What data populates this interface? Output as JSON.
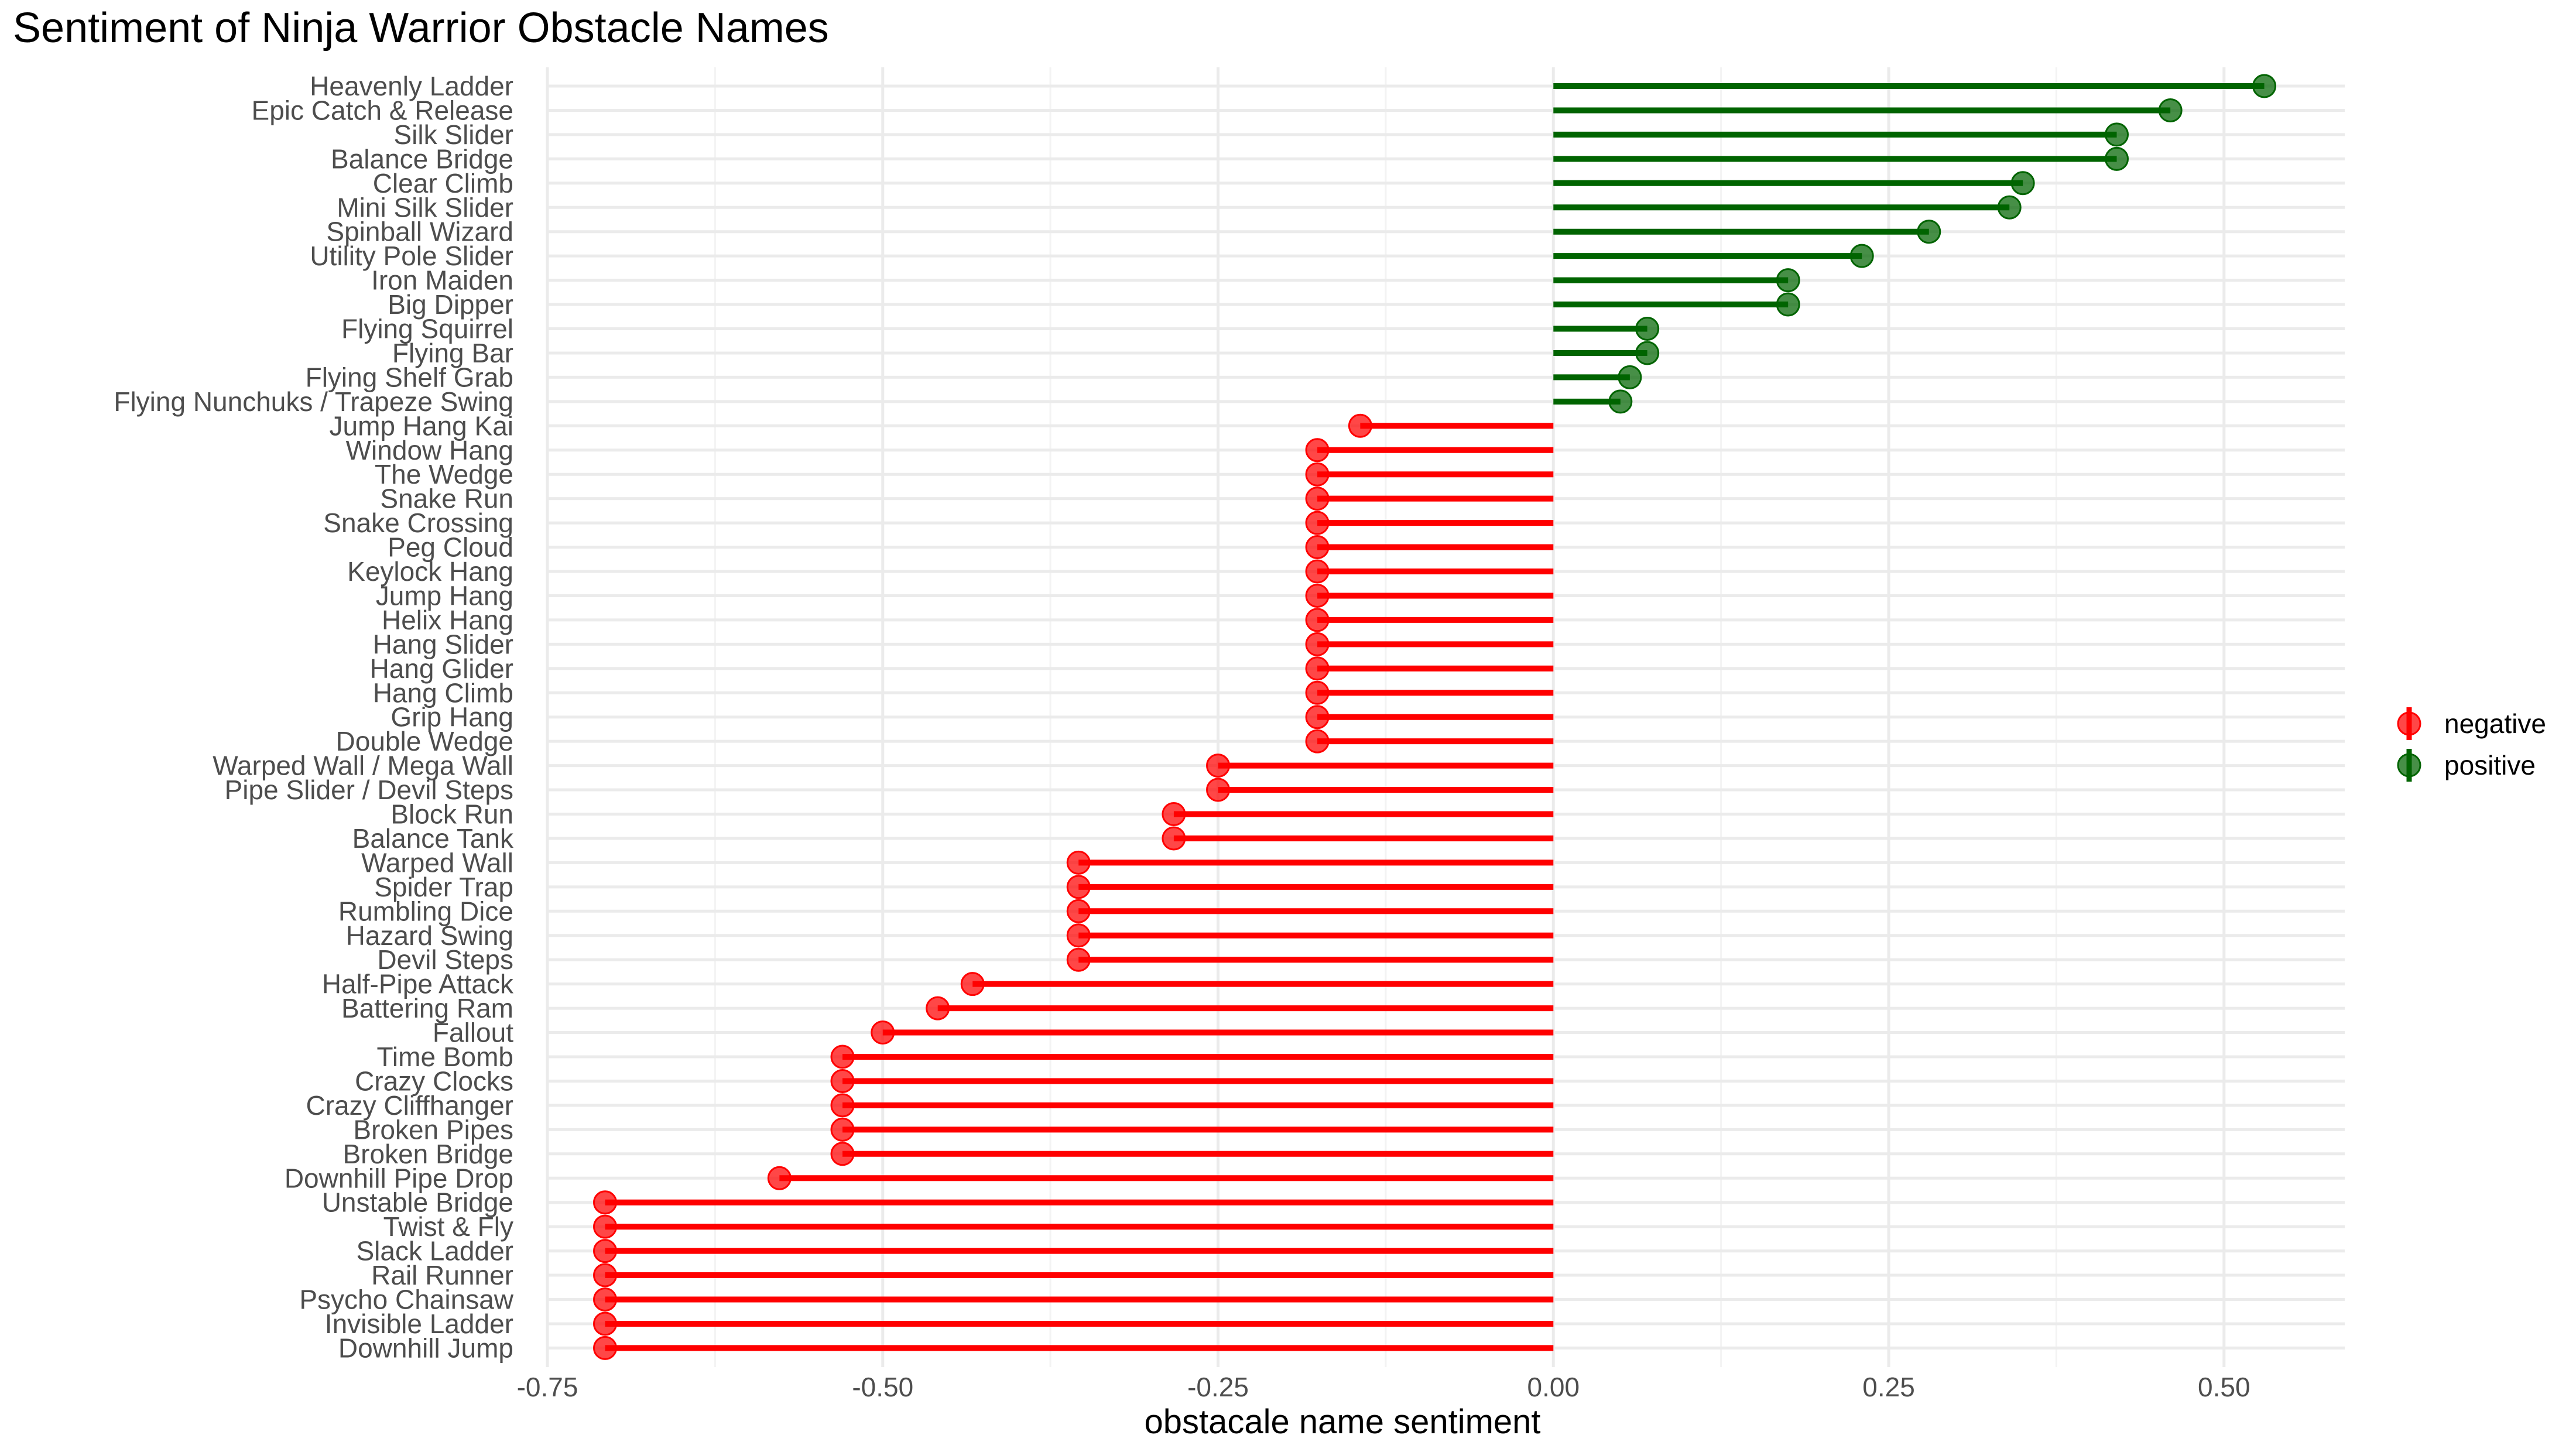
{
  "chart_data": {
    "type": "lollipop",
    "title": "Sentiment of Ninja Warrior Obstacle Names",
    "xlabel": "obstacale name sentiment",
    "ylabel": "",
    "xlim": [
      -0.75,
      0.59
    ],
    "xticks": [
      -0.75,
      -0.5,
      -0.25,
      0.0,
      0.25,
      0.5
    ],
    "xtick_labels": [
      "-0.75",
      "-0.50",
      "-0.25",
      "0.00",
      "0.25",
      "0.50"
    ],
    "grid": true,
    "legend_position": "right",
    "colors": {
      "negative": "#ff0000",
      "positive": "#006400",
      "grid_major": "#ebebeb",
      "grid_minor": "#f3f3f3",
      "label_text": "#4d4d4d",
      "title_text": "#000000"
    },
    "legend": [
      {
        "key": "negative",
        "label": "negative"
      },
      {
        "key": "positive",
        "label": "positive"
      }
    ],
    "categories": [
      "Heavenly Ladder",
      "Epic Catch & Release",
      "Silk Slider",
      "Balance Bridge",
      "Clear Climb",
      "Mini Silk Slider",
      "Spinball Wizard",
      "Utility Pole Slider",
      "Iron Maiden",
      "Big Dipper",
      "Flying Squirrel",
      "Flying Bar",
      "Flying Shelf Grab",
      "Flying Nunchuks / Trapeze Swing",
      "Jump Hang Kai",
      "Window Hang",
      "The Wedge",
      "Snake Run",
      "Snake Crossing",
      "Peg Cloud",
      "Keylock Hang",
      "Jump Hang",
      "Helix Hang",
      "Hang Slider",
      "Hang Glider",
      "Hang Climb",
      "Grip Hang",
      "Double Wedge",
      "Warped Wall / Mega Wall",
      "Pipe Slider / Devil Steps",
      "Block Run",
      "Balance Tank",
      "Warped Wall",
      "Spider Trap",
      "Rumbling Dice",
      "Hazard Swing",
      "Devil Steps",
      "Half-Pipe Attack",
      "Battering Ram",
      "Fallout",
      "Time Bomb",
      "Crazy Clocks",
      "Crazy Cliffhanger",
      "Broken Pipes",
      "Broken Bridge",
      "Downhill Pipe Drop",
      "Unstable Bridge",
      "Twist & Fly",
      "Slack Ladder",
      "Rail Runner",
      "Psycho Chainsaw",
      "Invisible Ladder",
      "Downhill Jump"
    ],
    "values": [
      0.53,
      0.46,
      0.42,
      0.42,
      0.35,
      0.34,
      0.28,
      0.23,
      0.175,
      0.175,
      0.07,
      0.07,
      0.057,
      0.05,
      -0.144,
      -0.176,
      -0.176,
      -0.176,
      -0.176,
      -0.176,
      -0.176,
      -0.176,
      -0.176,
      -0.176,
      -0.176,
      -0.176,
      -0.176,
      -0.176,
      -0.25,
      -0.25,
      -0.283,
      -0.283,
      -0.354,
      -0.354,
      -0.354,
      -0.354,
      -0.354,
      -0.433,
      -0.459,
      -0.5,
      -0.53,
      -0.53,
      -0.53,
      -0.53,
      -0.53,
      -0.577,
      -0.707,
      -0.707,
      -0.707,
      -0.707,
      -0.707,
      -0.707,
      -0.707
    ]
  }
}
